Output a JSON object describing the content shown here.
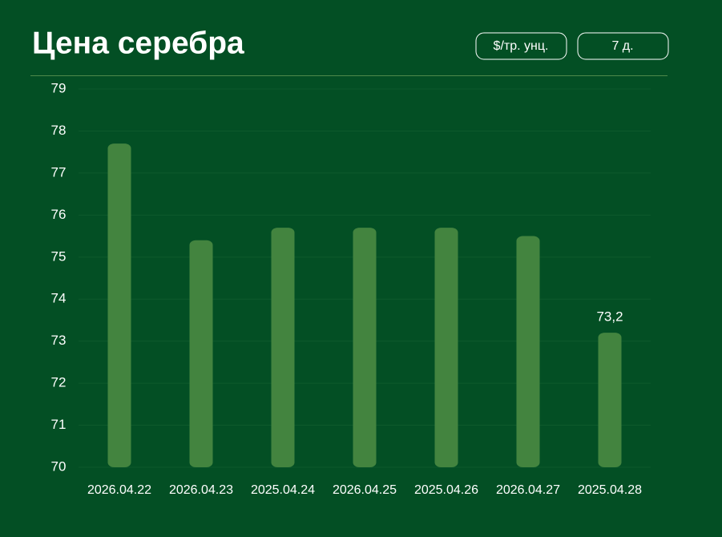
{
  "chart_data": {
    "type": "bar",
    "title": "Цена серебра",
    "unit_button": "$/тр. унц.",
    "period_button": "7 д.",
    "categories": [
      "2026.04.22",
      "2026.04.23",
      "2025.04.24",
      "2026.04.25",
      "2025.04.26",
      "2026.04.27",
      "2025.04.28"
    ],
    "values": [
      77.7,
      75.4,
      75.7,
      75.7,
      75.7,
      75.5,
      73.2
    ],
    "value_labels": [
      null,
      null,
      null,
      null,
      null,
      null,
      "73,2"
    ],
    "color": "#43843f",
    "ylim": [
      70,
      79
    ],
    "yticks": [
      70,
      71,
      72,
      73,
      74,
      75,
      76,
      77,
      78,
      79
    ],
    "grid": true
  }
}
